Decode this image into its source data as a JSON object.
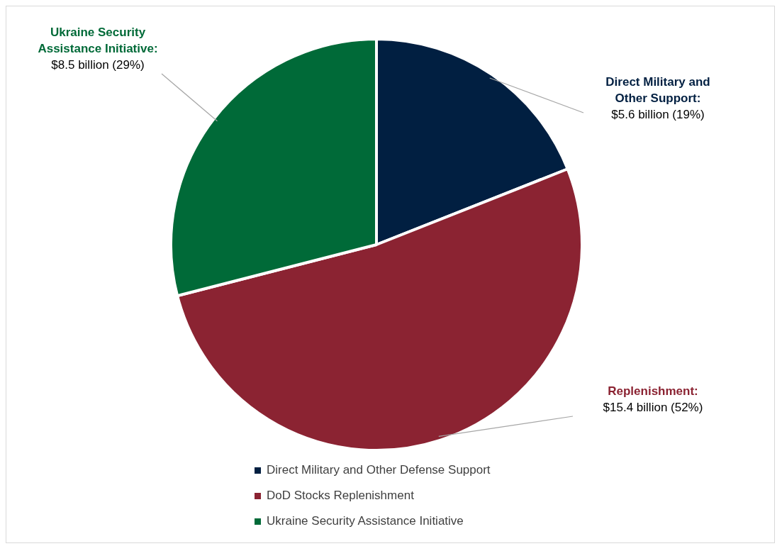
{
  "chart_data": {
    "type": "pie",
    "categories": [
      "Direct Military and Other Defense Support",
      "DoD Stocks Replenishment",
      "Ukraine Security Assistance Initiative"
    ],
    "values": [
      19,
      52,
      29
    ],
    "colors": [
      "#011f41",
      "#8b2332",
      "#006a38"
    ],
    "value_labels": [
      "$5.6 billion (19%)",
      "$15.4 billion (52%)",
      "$8.5 billion (29%)"
    ],
    "annotations": [
      "Direct Military and Other Support:",
      "Replenishment:",
      "Ukraine Security Assistance Initiative:"
    ],
    "legend": "bottom"
  }
}
